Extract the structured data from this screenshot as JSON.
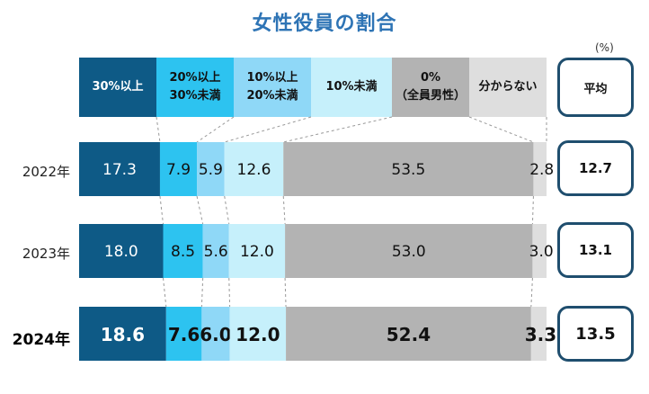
{
  "chart_data": {
    "type": "bar",
    "stacked": true,
    "orientation": "horizontal",
    "title": "女性役員の割合",
    "unit": "(%)",
    "legend": [
      {
        "label": "30%以上",
        "color": "#0e5a86",
        "text_color": "#ffffff"
      },
      {
        "label": "20%以上\n30%未満",
        "color": "#2dc3f0",
        "text_color": "#111111"
      },
      {
        "label": "10%以上\n20%未満",
        "color": "#8fd8f7",
        "text_color": "#111111"
      },
      {
        "label": "10%未満",
        "color": "#c6f0fb",
        "text_color": "#111111"
      },
      {
        "label": "0%\n（全員男性）",
        "color": "#b3b3b3",
        "text_color": "#111111"
      },
      {
        "label": "分からない",
        "color": "#dedede",
        "text_color": "#111111"
      }
    ],
    "categories": [
      "2022年",
      "2023年",
      "2024年"
    ],
    "series": [
      {
        "name": "30%以上",
        "values": [
          17.3,
          18.0,
          18.6
        ]
      },
      {
        "name": "20%以上30%未満",
        "values": [
          7.9,
          8.5,
          7.6
        ]
      },
      {
        "name": "10%以上20%未満",
        "values": [
          5.9,
          5.6,
          6.0
        ]
      },
      {
        "name": "10%未満",
        "values": [
          12.6,
          12.0,
          12.0
        ]
      },
      {
        "name": "0%（全員男性）",
        "values": [
          53.5,
          53.0,
          52.4
        ]
      },
      {
        "name": "分からない",
        "values": [
          2.8,
          3.0,
          3.3
        ]
      }
    ],
    "value_labels": [
      [
        "17.3",
        "7.9",
        "5.9",
        "12.6",
        "53.5",
        "2.8"
      ],
      [
        "18.0",
        "8.5",
        "5.6",
        "12.0",
        "53.0",
        "3.0"
      ],
      [
        "18.6",
        "7.6",
        "6.0",
        "12.0",
        "52.4",
        "3.3"
      ]
    ],
    "average_label": "平均",
    "averages": [
      "12.7",
      "13.1",
      "13.5"
    ],
    "highlight_category": "2024年"
  }
}
